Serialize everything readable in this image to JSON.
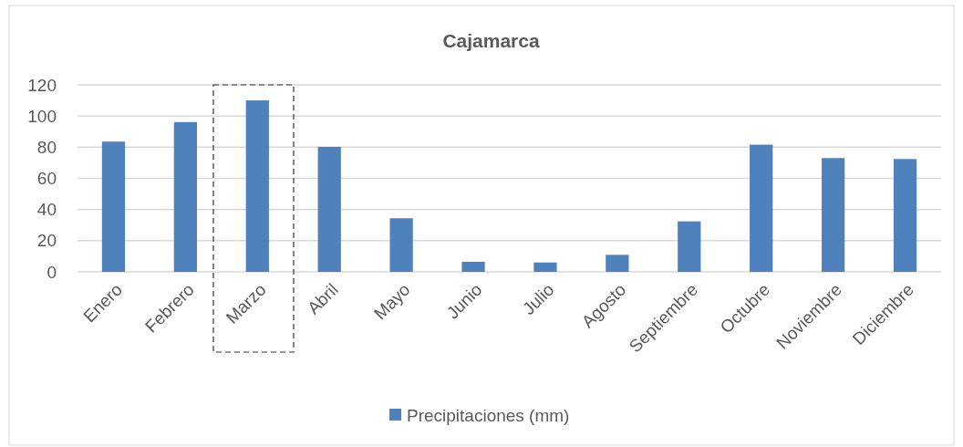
{
  "chart_data": {
    "type": "bar",
    "title": "Cajamarca",
    "categories": [
      "Enero",
      "Febrero",
      "Marzo",
      "Abril",
      "Mayo",
      "Junio",
      "Julio",
      "Agosto",
      "Septiembre",
      "Octubre",
      "Noviembre",
      "Diciembre"
    ],
    "series": [
      {
        "name": "Precipitaciones (mm)",
        "color": "#4f81bd",
        "values": [
          83.6,
          96.1,
          110,
          80.2,
          34.4,
          6.5,
          6,
          10.9,
          32.4,
          81.6,
          73,
          72.4
        ]
      }
    ],
    "ylim": [
      0,
      120
    ],
    "yticks": [
      0,
      20,
      40,
      60,
      80,
      100,
      120
    ],
    "grid": "y",
    "legend": "bottom"
  }
}
